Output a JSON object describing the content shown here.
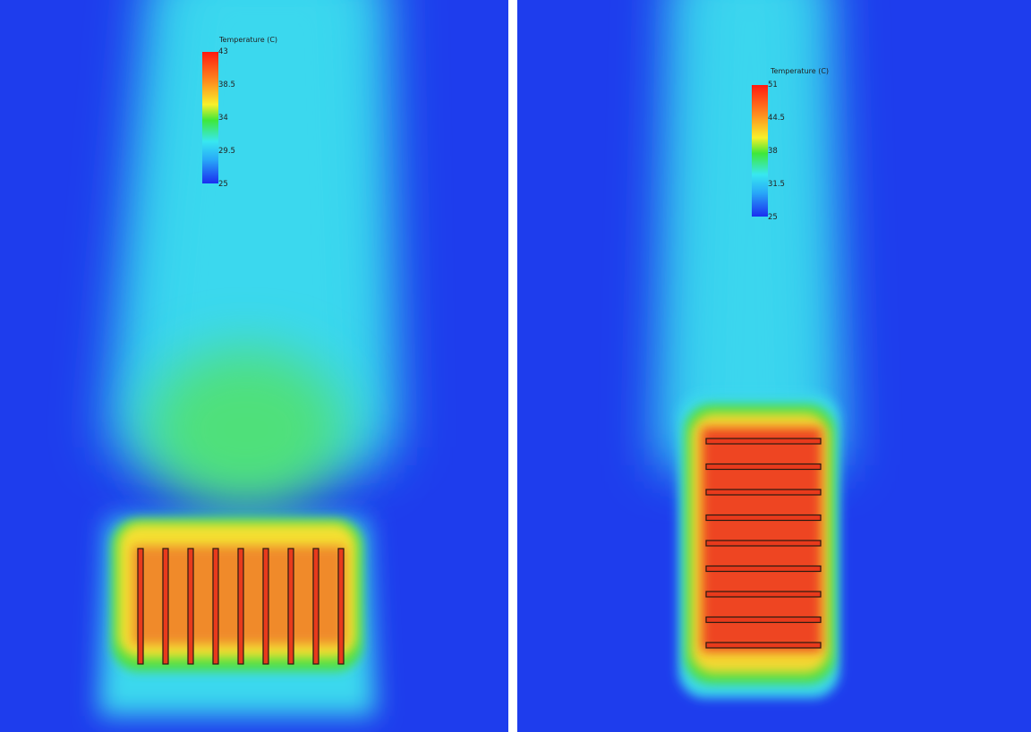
{
  "left_panel": {
    "legend": {
      "title": "Temperature (C)",
      "ticks": [
        "43",
        "38.5",
        "34",
        "29.5",
        "25"
      ]
    },
    "fin_orientation": "vertical",
    "fin_count": 9
  },
  "right_panel": {
    "legend": {
      "title": "Temperature (C)",
      "ticks": [
        "51",
        "44.5",
        "38",
        "31.5",
        "25"
      ]
    },
    "fin_orientation": "horizontal",
    "fin_count": 9
  },
  "colors": {
    "background": "#1e3ded",
    "plume": "#38d8ee",
    "warm": "#f0e030",
    "hot": "#ee3a1a",
    "divider": "#ffffff"
  }
}
